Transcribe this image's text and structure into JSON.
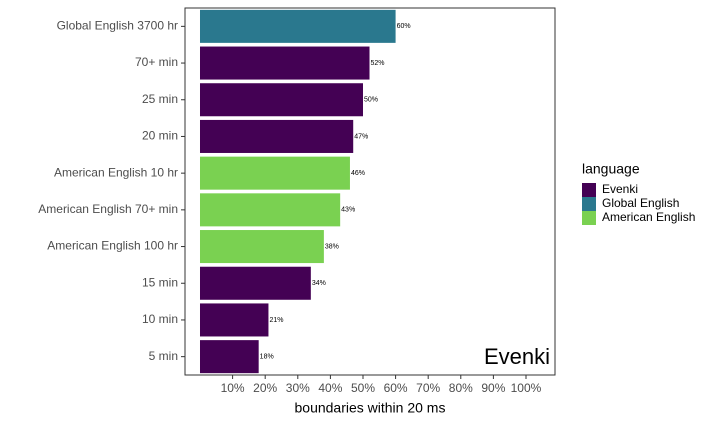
{
  "chart_data": {
    "type": "bar",
    "orientation": "horizontal",
    "categories": [
      "Global English 3700 hr",
      "70+ min",
      "25 min",
      "20 min",
      "American English 10 hr",
      "American English 70+ min",
      "American English 100 hr",
      "15 min",
      "10 min",
      "5 min"
    ],
    "series": [
      {
        "name": "Evenki",
        "color": "#440154",
        "values": [
          null,
          52,
          50,
          47,
          null,
          null,
          null,
          34,
          21,
          18
        ],
        "value_labels": [
          null,
          "52%",
          "50%",
          "47%",
          null,
          null,
          null,
          "34%",
          "21%",
          "18%"
        ]
      },
      {
        "name": "Global English",
        "color": "#2a788e",
        "values": [
          60,
          null,
          null,
          null,
          null,
          null,
          null,
          null,
          null,
          null
        ],
        "value_labels": [
          "60%",
          null,
          null,
          null,
          null,
          null,
          null,
          null,
          null,
          null
        ]
      },
      {
        "name": "American English",
        "color": "#7ad151",
        "values": [
          null,
          null,
          null,
          null,
          46,
          43,
          38,
          null,
          null,
          null
        ],
        "value_labels": [
          null,
          null,
          null,
          null,
          "46%",
          "43%",
          "38%",
          null,
          null,
          null
        ]
      }
    ],
    "xlim": [
      -4.6,
      108.9
    ],
    "xticks": [
      {
        "value": 10,
        "label": "10%"
      },
      {
        "value": 20,
        "label": "20%"
      },
      {
        "value": 30,
        "label": "30%"
      },
      {
        "value": 40,
        "label": "40%"
      },
      {
        "value": 50,
        "label": "50%"
      },
      {
        "value": 60,
        "label": "60%"
      },
      {
        "value": 70,
        "label": "70%"
      },
      {
        "value": 80,
        "label": "80%"
      },
      {
        "value": 90,
        "label": "90%"
      },
      {
        "value": 100,
        "label": "100%"
      }
    ],
    "x_label": "boundaries within 20 ms",
    "annotation": "Evenki",
    "legend_title": "language"
  }
}
